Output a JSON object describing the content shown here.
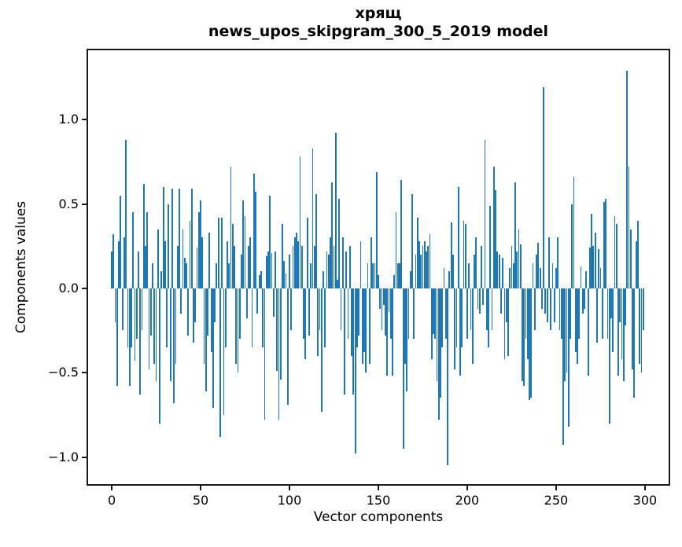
{
  "figure": {
    "title_line1": "хрящ",
    "title_line2": "news_upos_skipgram_300_5_2019 model",
    "xlabel": "Vector components",
    "ylabel": "Components values"
  },
  "chart_data": {
    "type": "bar",
    "title": "хрящ — news_upos_skipgram_300_5_2019 model",
    "xlabel": "Vector components",
    "ylabel": "Components values",
    "bar_color": "#1f77b4",
    "axis_color": "#1a1a1a",
    "grid": false,
    "legend": false,
    "n_components": 300,
    "xlim": [
      -14.2,
      314.2
    ],
    "ylim": [
      -1.17,
      1.42
    ],
    "x_ticks": [
      0,
      50,
      100,
      150,
      200,
      250,
      300
    ],
    "y_ticks": [
      {
        "label": "1.0",
        "value": 1.0
      },
      {
        "label": "0.5",
        "value": 0.5
      },
      {
        "label": "0.0",
        "value": 0.0
      },
      {
        "label": "−0.5",
        "value": -0.5
      },
      {
        "label": "−1.0",
        "value": -1.0
      }
    ],
    "values": [
      0.22,
      0.32,
      -0.2,
      -0.58,
      0.28,
      0.55,
      -0.25,
      0.3,
      0.88,
      -0.35,
      -0.58,
      -0.35,
      0.45,
      -0.43,
      -0.3,
      0.22,
      -0.63,
      -0.25,
      0.62,
      0.25,
      0.45,
      -0.48,
      -0.28,
      0.15,
      -0.45,
      -0.55,
      0.35,
      -0.8,
      0.1,
      0.6,
      0.28,
      -0.35,
      0.5,
      -0.55,
      0.59,
      -0.68,
      -0.45,
      0.25,
      0.59,
      -0.15,
      0.35,
      0.18,
      0.15,
      -0.28,
      0.4,
      0.59,
      -0.32,
      -0.2,
      0.24,
      0.45,
      0.52,
      0.3,
      -0.45,
      -0.61,
      -0.28,
      0.33,
      -0.38,
      -0.71,
      -0.2,
      0.15,
      0.42,
      -0.88,
      0.42,
      -0.75,
      -0.35,
      0.28,
      0.15,
      0.72,
      0.38,
      0.25,
      -0.45,
      -0.5,
      -0.3,
      0.2,
      0.52,
      0.43,
      -0.18,
      0.25,
      0.3,
      -0.35,
      0.68,
      0.57,
      -0.15,
      0.08,
      0.1,
      -0.35,
      -0.78,
      0.19,
      0.22,
      0.55,
      0.21,
      -0.17,
      0.22,
      -0.49,
      -0.78,
      -0.54,
      0.38,
      0.16,
      0.09,
      -0.69,
      0.2,
      -0.25,
      0.25,
      0.3,
      0.33,
      0.28,
      0.78,
      0.25,
      -0.3,
      -0.42,
      0.42,
      -0.28,
      0.15,
      0.83,
      0.25,
      0.56,
      -0.4,
      -0.25,
      -0.73,
      0.1,
      -0.35,
      0.22,
      0.2,
      0.3,
      0.63,
      0.25,
      0.92,
      0.05,
      0.53,
      -0.25,
      0.3,
      -0.63,
      0.22,
      -0.3,
      0.25,
      -0.4,
      -0.63,
      -0.98,
      -0.35,
      -0.28,
      0.28,
      -0.45,
      -0.38,
      -0.5,
      0.15,
      -0.45,
      0.3,
      0.15,
      0.15,
      0.69,
      0.08,
      -0.12,
      -0.25,
      -0.1,
      -0.28,
      -0.52,
      -0.14,
      -0.3,
      -0.52,
      0.08,
      0.45,
      0.15,
      0.15,
      0.64,
      -0.95,
      -0.45,
      -0.61,
      -0.3,
      0.1,
      0.56,
      -0.3,
      0.2,
      0.42,
      0.28,
      0.2,
      0.25,
      0.28,
      0.22,
      0.25,
      0.32,
      -0.42,
      -0.27,
      -0.3,
      -0.55,
      -0.78,
      -0.65,
      -0.35,
      0.12,
      -0.3,
      -1.05,
      0.1,
      0.39,
      0.2,
      -0.48,
      -0.35,
      0.6,
      -0.52,
      -0.35,
      0.4,
      0.38,
      -0.3,
      0.15,
      -0.25,
      -0.45,
      0.2,
      0.3,
      -0.12,
      -0.15,
      0.25,
      -0.1,
      0.88,
      -0.25,
      -0.35,
      0.49,
      -0.25,
      0.72,
      0.58,
      0.22,
      0.2,
      -0.15,
      0.18,
      -0.42,
      -0.2,
      -0.4,
      0.12,
      0.25,
      0.15,
      0.63,
      0.22,
      0.35,
      0.26,
      -0.55,
      -0.58,
      -0.3,
      -0.42,
      -0.66,
      -0.65,
      0.15,
      -0.25,
      0.2,
      0.27,
      0.12,
      -0.12,
      1.19,
      -0.15,
      -0.2,
      0.3,
      -0.25,
      0.15,
      -0.2,
      0.12,
      0.3,
      -0.25,
      -0.3,
      -0.93,
      -0.55,
      -0.5,
      -0.82,
      -0.3,
      0.5,
      0.66,
      -0.38,
      -0.45,
      -0.3,
      0.13,
      -0.15,
      -0.12,
      0.1,
      -0.52,
      0.24,
      0.44,
      0.25,
      0.33,
      -0.32,
      0.23,
      0.12,
      -0.3,
      0.51,
      0.53,
      -0.3,
      -0.8,
      -0.18,
      -0.38,
      0.43,
      0.38,
      -0.52,
      -0.2,
      -0.42,
      -0.55,
      -0.22,
      1.29,
      0.72,
      0.35,
      -0.48,
      -0.65,
      0.28,
      0.4,
      -0.45,
      -0.5,
      -0.25
    ]
  }
}
